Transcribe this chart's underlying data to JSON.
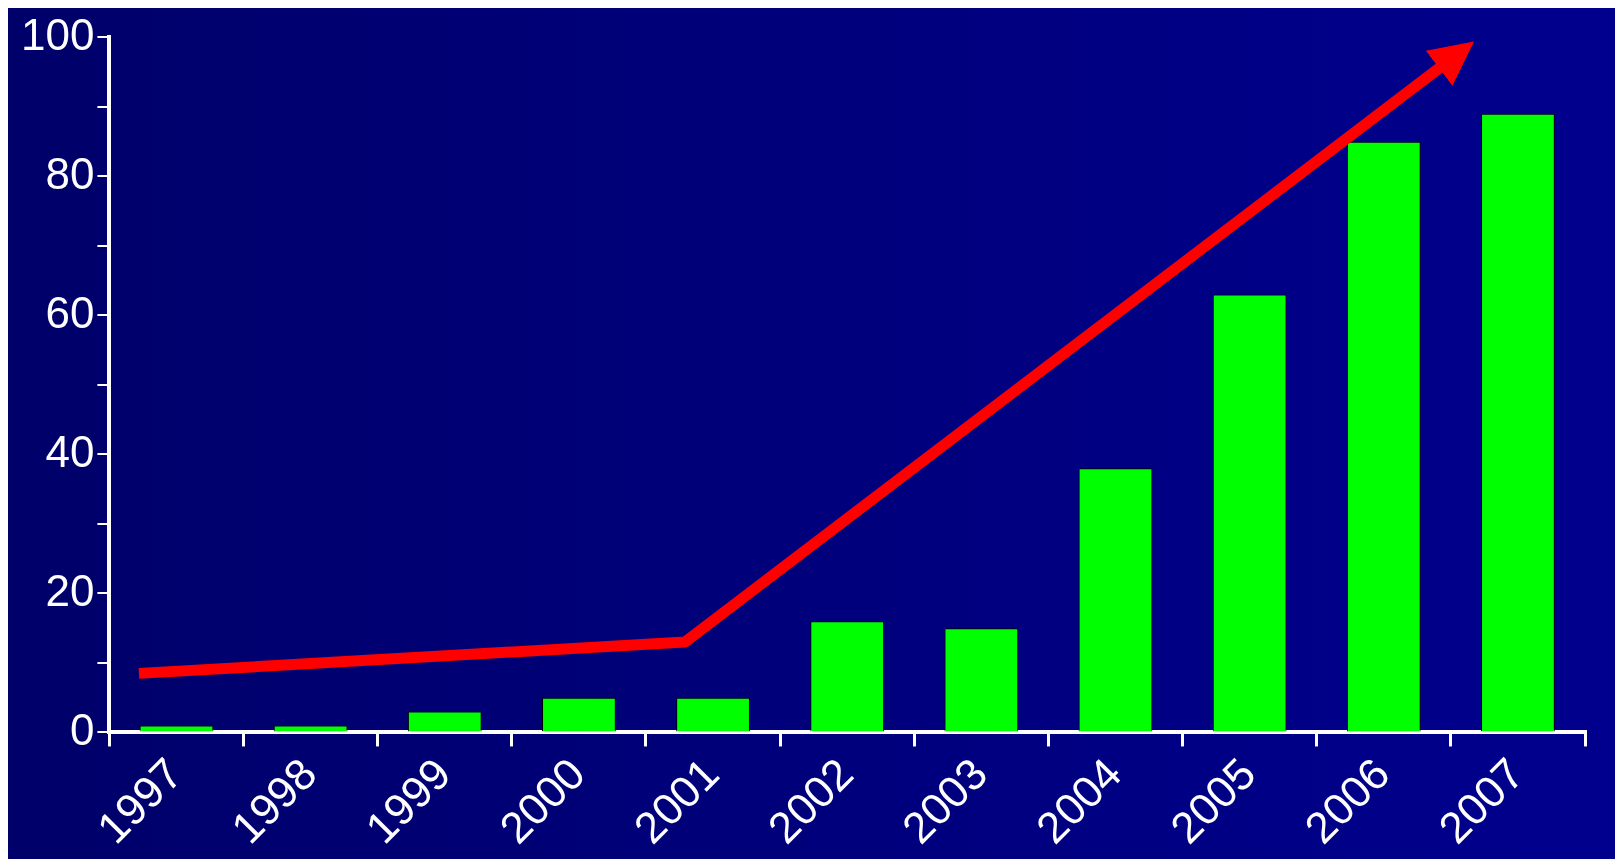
{
  "chart_data": {
    "type": "bar",
    "categories": [
      "1997",
      "1998",
      "1999",
      "2000",
      "2001",
      "2002",
      "2003",
      "2004",
      "2005",
      "2006",
      "2007"
    ],
    "values": [
      1,
      1,
      3,
      5,
      5,
      16,
      15,
      38,
      63,
      85,
      89
    ],
    "color": "#00ff00",
    "ylim": [
      0,
      100
    ],
    "yticks": [
      0,
      {
        "value": 10,
        "label": null
      },
      20,
      {
        "value": 30,
        "label": null
      },
      40,
      {
        "value": 50,
        "label": null
      },
      60,
      {
        "value": 70,
        "label": null
      },
      80,
      {
        "value": 90,
        "label": null
      },
      100
    ],
    "grid": false,
    "legend": false
  }
}
